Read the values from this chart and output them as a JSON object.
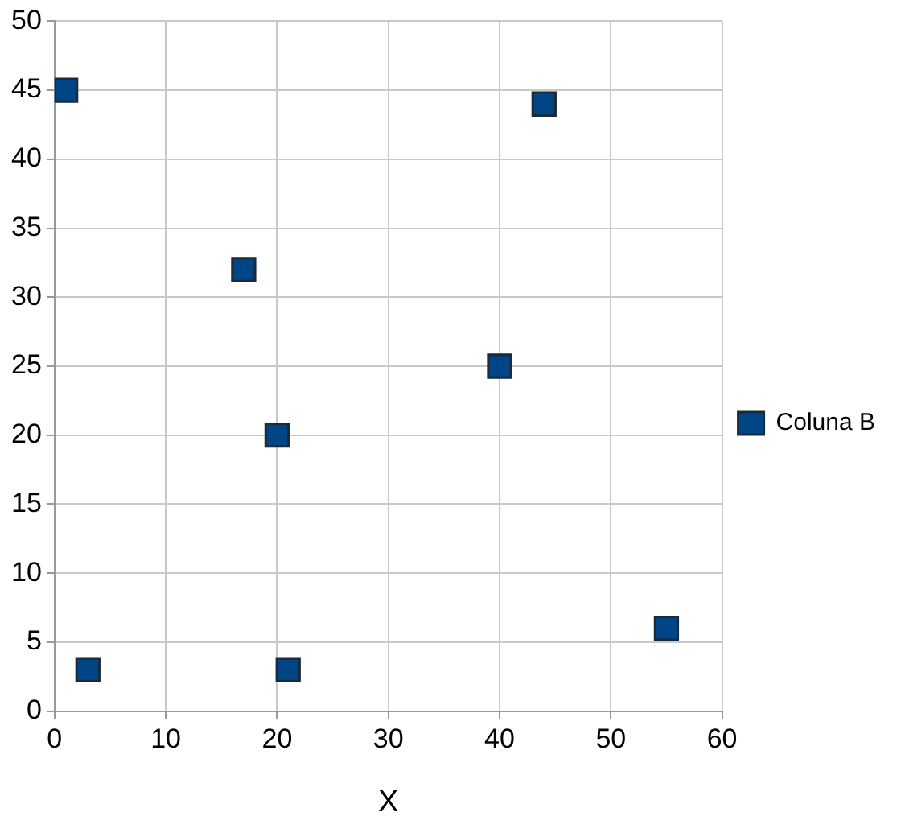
{
  "chart_data": {
    "type": "scatter",
    "xlabel": "X",
    "x": [
      1,
      3,
      17,
      20,
      21,
      40,
      44,
      55
    ],
    "series": [
      {
        "name": "Coluna B",
        "color": "#004586",
        "values": [
          45,
          3,
          32,
          20,
          3,
          25,
          44,
          6
        ]
      }
    ],
    "xlim": [
      0,
      60
    ],
    "xticks": [
      0,
      10,
      20,
      30,
      40,
      50,
      60
    ],
    "ylim": [
      0,
      50
    ],
    "yticks": [
      0,
      5,
      10,
      15,
      20,
      25,
      30,
      35,
      40,
      45,
      50
    ],
    "grid": true,
    "legend": "right",
    "marker": "square"
  }
}
